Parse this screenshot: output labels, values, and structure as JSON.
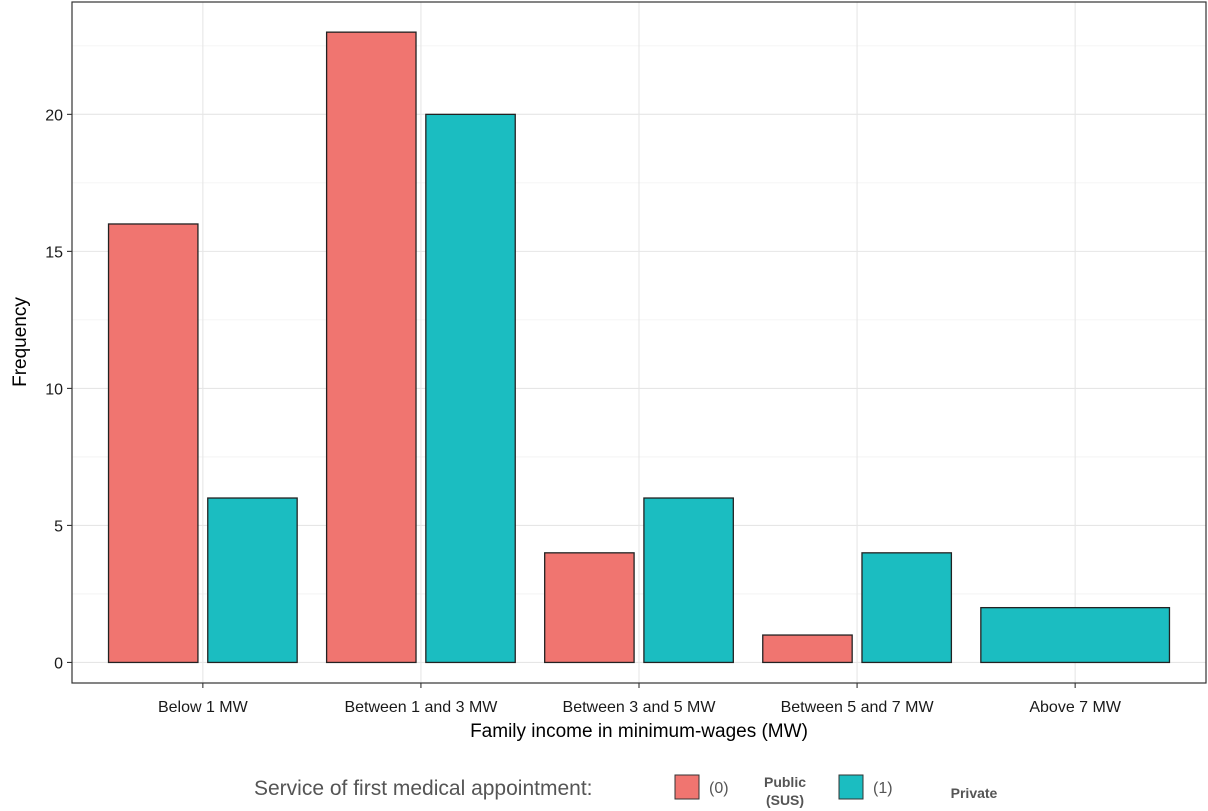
{
  "chart_data": {
    "type": "bar",
    "title": "",
    "xlabel": "Family income in minimum-wages (MW)",
    "ylabel": "Frequency",
    "ylim": [
      -0.75,
      24.1
    ],
    "yticks": [
      0,
      5,
      10,
      15,
      20
    ],
    "grid": true,
    "categories": [
      "Below 1 MW",
      "Between 1 and 3 MW",
      "Between 3 and 5 MW",
      "Between 5 and 7 MW",
      "Above 7 MW"
    ],
    "series": [
      {
        "name": "Public (SUS)",
        "code": "(0)",
        "color": "#F07570",
        "values": [
          16,
          23,
          4,
          1,
          0
        ]
      },
      {
        "name": "Private",
        "code": "(1)",
        "color": "#1BBDC1",
        "values": [
          6,
          20,
          6,
          4,
          2
        ]
      }
    ],
    "legend": {
      "position": "bottom",
      "title": "Service of first medical appointment:",
      "items": [
        {
          "code": "(0)",
          "lines": [
            "Public",
            "(SUS)"
          ],
          "color": "#F07570"
        },
        {
          "code": "(1)",
          "lines": [
            "Private"
          ],
          "color": "#1BBDC1"
        }
      ]
    }
  }
}
